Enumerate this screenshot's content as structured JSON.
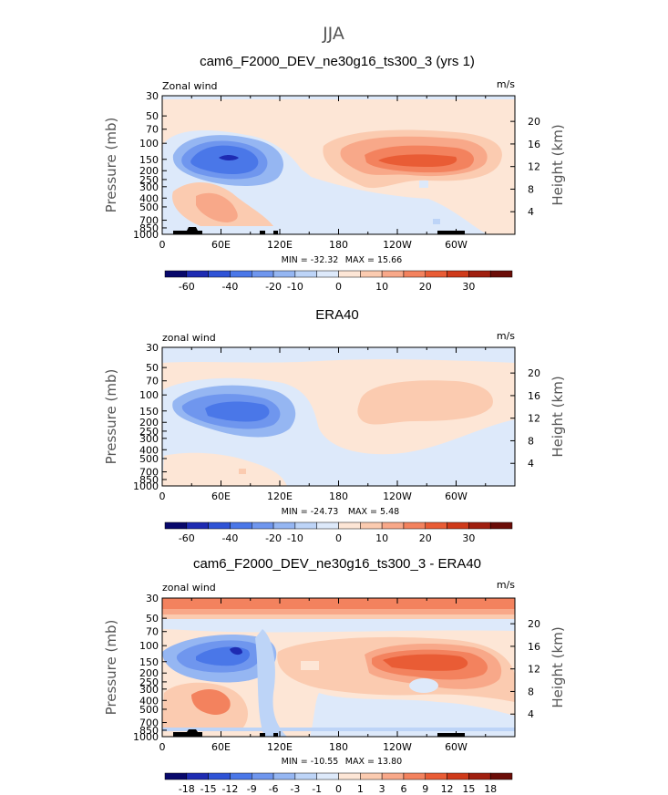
{
  "figure": {
    "title": "JJA"
  },
  "colors": {
    "palette": [
      "#08086b",
      "#1e2bb2",
      "#2f53d6",
      "#4a77e8",
      "#6f96ee",
      "#95b6f2",
      "#bdd4f7",
      "#dde9fa",
      "#fde6d6",
      "#fbcbb0",
      "#f8a889",
      "#f3825e",
      "#e95c35",
      "#cf3a1a",
      "#a01f0f",
      "#6b0d08"
    ]
  },
  "chart_data": [
    {
      "type": "heatmap",
      "title": "cam6_F2000_DEV_ne30g16_ts300_3 (yrs 1)",
      "left_label": "Zonal wind",
      "units": "m/s",
      "ylabel": "Pressure (mb)",
      "ylabel_right": "Height (km)",
      "y_ticks": [
        "30",
        "50",
        "70",
        "100",
        "150",
        "200",
        "250",
        "300",
        "400",
        "500",
        "700",
        "850",
        "1000"
      ],
      "y_ticks_right": [
        "20",
        "16",
        "12",
        "8",
        "4"
      ],
      "x_ticks": [
        "0",
        "60E",
        "120E",
        "180",
        "120W",
        "60W"
      ],
      "min_label": "MIN = -32.32",
      "max_label": "MAX = 15.66",
      "colorbar_labels": [
        "-60",
        "-40",
        "-20",
        "-10",
        "0",
        "10",
        "20",
        "30"
      ],
      "cells": [
        {
          "lon": 0,
          "p": 30,
          "v": 0
        },
        {
          "lon": 300,
          "p": 30,
          "v": -1
        },
        {
          "lon": 75,
          "p": 150,
          "v": -30
        },
        {
          "lon": 75,
          "p": 200,
          "v": -18
        },
        {
          "lon": 40,
          "p": 130,
          "v": -9
        },
        {
          "lon": 110,
          "p": 200,
          "v": -6
        },
        {
          "lon": 60,
          "p": 500,
          "v": 5
        },
        {
          "lon": 30,
          "p": 350,
          "v": 3
        },
        {
          "lon": 265,
          "p": 150,
          "v": 14
        },
        {
          "lon": 225,
          "p": 130,
          "v": 8
        },
        {
          "lon": 290,
          "p": 200,
          "v": 6
        },
        {
          "lon": 180,
          "p": 400,
          "v": -3
        },
        {
          "lon": 300,
          "p": 700,
          "v": 0
        }
      ]
    },
    {
      "type": "heatmap",
      "title": "ERA40",
      "left_label": "zonal wind",
      "units": "m/s",
      "ylabel": "Pressure (mb)",
      "ylabel_right": "Height (km)",
      "y_ticks": [
        "30",
        "50",
        "70",
        "100",
        "150",
        "200",
        "250",
        "300",
        "400",
        "500",
        "700",
        "850",
        "1000"
      ],
      "y_ticks_right": [
        "20",
        "16",
        "12",
        "8",
        "4"
      ],
      "x_ticks": [
        "0",
        "60E",
        "120E",
        "180",
        "120W",
        "60W"
      ],
      "min_label": "MIN = -24.73",
      "max_label": "MAX = 5.48",
      "colorbar_labels": [
        "-60",
        "-40",
        "-20",
        "-10",
        "0",
        "10",
        "20",
        "30"
      ]
    },
    {
      "type": "heatmap",
      "title": "cam6_F2000_DEV_ne30g16_ts300_3 - ERA40",
      "left_label": "zonal wind",
      "units": "m/s",
      "ylabel": "Pressure (mb)",
      "ylabel_right": "Height (km)",
      "y_ticks": [
        "30",
        "50",
        "70",
        "100",
        "150",
        "200",
        "250",
        "300",
        "400",
        "500",
        "700",
        "850",
        "1000"
      ],
      "y_ticks_right": [
        "20",
        "16",
        "12",
        "8",
        "4"
      ],
      "x_ticks": [
        "0",
        "60E",
        "120E",
        "180",
        "120W",
        "60W"
      ],
      "min_label": "MIN = -10.55",
      "max_label": "MAX = 13.80",
      "colorbar_labels": [
        "-18",
        "-15",
        "-12",
        "-9",
        "-6",
        "-3",
        "-1",
        "0",
        "1",
        "3",
        "6",
        "9",
        "12",
        "15",
        "18"
      ]
    }
  ]
}
